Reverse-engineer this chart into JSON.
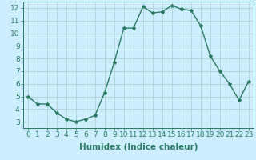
{
  "x": [
    0,
    1,
    2,
    3,
    4,
    5,
    6,
    7,
    8,
    9,
    10,
    11,
    12,
    13,
    14,
    15,
    16,
    17,
    18,
    19,
    20,
    21,
    22,
    23
  ],
  "y": [
    5.0,
    4.4,
    4.4,
    3.7,
    3.2,
    3.0,
    3.2,
    3.5,
    5.3,
    7.7,
    10.4,
    10.4,
    12.1,
    11.6,
    11.7,
    12.2,
    11.9,
    11.8,
    10.6,
    8.2,
    7.0,
    6.0,
    4.7,
    6.2
  ],
  "line_color": "#2a7a62",
  "marker": "*",
  "marker_size": 3,
  "bg_color": "#cceeff",
  "grid_color": "#aacccc",
  "xlabel": "Humidex (Indice chaleur)",
  "xlim": [
    -0.5,
    23.5
  ],
  "ylim": [
    2.5,
    12.5
  ],
  "yticks": [
    3,
    4,
    5,
    6,
    7,
    8,
    9,
    10,
    11,
    12
  ],
  "xticks": [
    0,
    1,
    2,
    3,
    4,
    5,
    6,
    7,
    8,
    9,
    10,
    11,
    12,
    13,
    14,
    15,
    16,
    17,
    18,
    19,
    20,
    21,
    22,
    23
  ],
  "tick_label_fontsize": 6.5,
  "xlabel_fontsize": 7.5,
  "line_width": 1.0
}
